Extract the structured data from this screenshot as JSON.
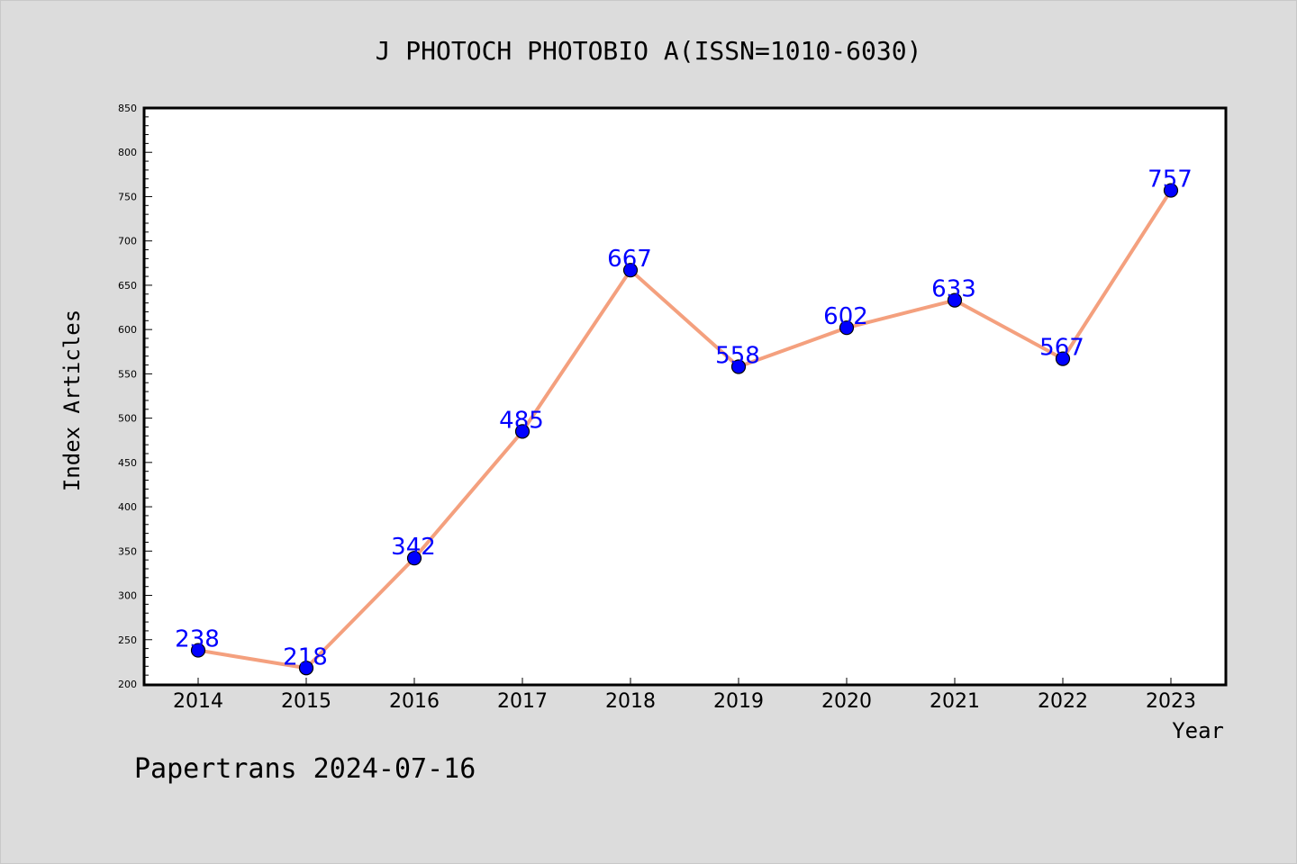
{
  "chart_data": {
    "type": "line",
    "title": "J PHOTOCH PHOTOBIO A(ISSN=1010-6030)",
    "xlabel": "Year",
    "ylabel": "Index Articles",
    "categories": [
      "2014",
      "2015",
      "2016",
      "2017",
      "2018",
      "2019",
      "2020",
      "2021",
      "2022",
      "2023"
    ],
    "values": [
      238,
      218,
      342,
      485,
      667,
      558,
      602,
      633,
      567,
      757
    ],
    "data_labels": [
      "238",
      "218",
      "342",
      "485",
      "667",
      "558",
      "602",
      "633",
      "567",
      "757"
    ],
    "ylim": [
      200,
      850
    ],
    "y_ticks": [
      "200",
      "250",
      "300",
      "350",
      "400",
      "450",
      "500",
      "550",
      "600",
      "650",
      "700",
      "750",
      "800",
      "850"
    ],
    "y_minor_step": 10,
    "grid": false,
    "colors": {
      "line": "#f4a07e",
      "marker": "#0000ff",
      "data_label": "#0000ff",
      "background": "#dcdcdc",
      "plot_area": "#ffffff"
    }
  },
  "footer": {
    "text": "Papertrans 2024-07-16"
  }
}
